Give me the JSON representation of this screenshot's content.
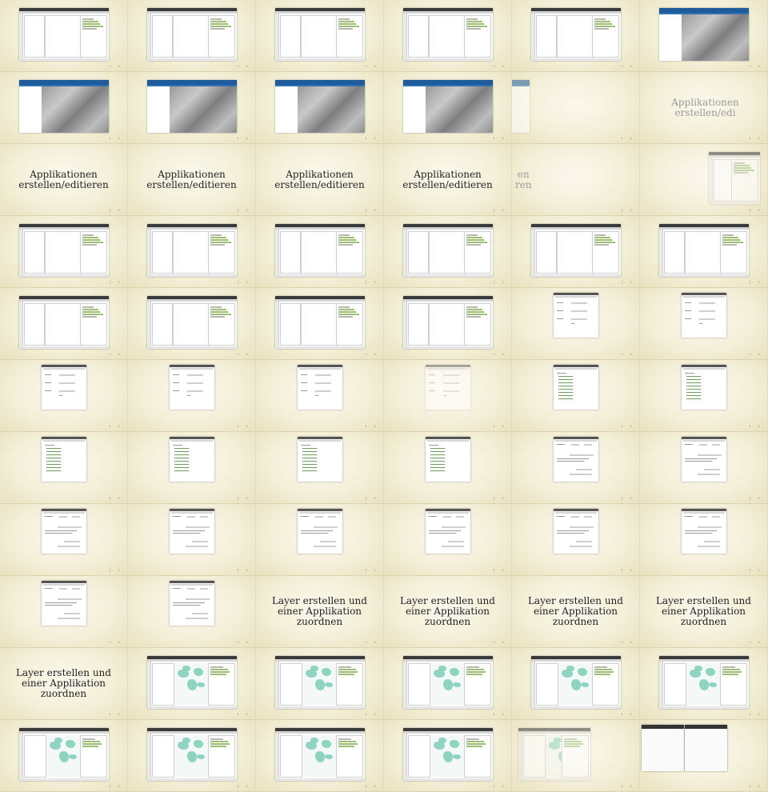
{
  "titles": {
    "applikationen": "Applikationen erstellen/editieren",
    "applikationen_clipped": "Applikationen erstellen/edi",
    "applikationen_tail": "en\nren",
    "layer": "Layer erstellen und einer Applikation zuordnen"
  },
  "nav_symbol": "‹ ›",
  "colors": {
    "background": "#efe8cc",
    "tree_green": "#9dbf77",
    "map_blue_header": "#1d5b9c",
    "world_map_land": "#8fd3c1"
  },
  "cells": [
    "app",
    "app",
    "app",
    "app",
    "app",
    "map",
    "map",
    "map",
    "map",
    "map",
    "map-sliver",
    "title-clipped",
    "title",
    "title",
    "title",
    "title",
    "title-tail",
    "app-faded",
    "app",
    "app",
    "app",
    "app",
    "app",
    "app",
    "app",
    "app",
    "app",
    "app",
    "app",
    "dlg-form",
    "dlg-form",
    "dlg-form",
    "dlg-form",
    "dlg-form",
    "dlg-form-faded",
    "dlg-list",
    "dlg-list",
    "dlg-list",
    "dlg-list",
    "dlg-list",
    "dlg-list",
    "dlg-buttons",
    "dlg-buttons",
    "dlg-buttons",
    "dlg-buttons",
    "dlg-buttons",
    "dlg-buttons",
    "dlg-buttons",
    "dlg-buttons",
    "dlg-buttons",
    "dlg-buttons",
    "layer",
    "layer",
    "layer",
    "layer",
    "layer",
    "world",
    "world",
    "world",
    "world",
    "world",
    "world",
    "world",
    "world",
    "world",
    "world-faded",
    "twin"
  ]
}
